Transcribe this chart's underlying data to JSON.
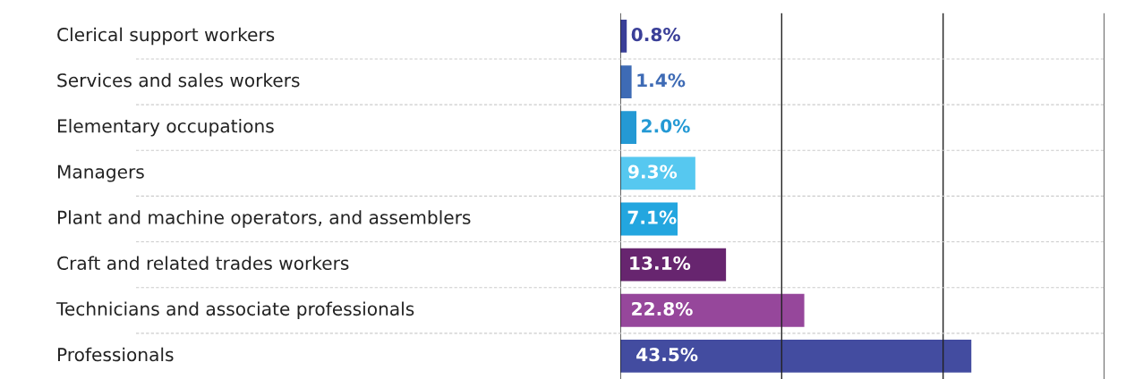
{
  "chart_data": {
    "type": "bar",
    "orientation": "horizontal",
    "categories": [
      "Clerical support workers",
      "Services and sales workers",
      "Elementary occupations",
      "Managers",
      "Plant and machine operators, and assemblers",
      "Craft and related trades workers",
      "Technicians and associate professionals",
      "Professionals"
    ],
    "values": [
      0.8,
      1.4,
      2.0,
      9.3,
      7.1,
      13.1,
      22.8,
      43.5
    ],
    "value_labels": [
      "0.8%",
      "1.4%",
      "2.0%",
      "9.3%",
      "7.1%",
      "13.1%",
      "22.8%",
      "43.5%"
    ],
    "colors": [
      "#3a3f98",
      "#3e6bb5",
      "#2499d4",
      "#56c8f0",
      "#23a6df",
      "#67256f",
      "#96479b",
      "#434ca0"
    ],
    "xlim": [
      0,
      60
    ],
    "xticks": [
      {
        "value": 0,
        "label": null
      },
      {
        "value": 20,
        "label": null
      },
      {
        "value": 40,
        "label": null
      },
      {
        "value": 60,
        "label": null
      }
    ],
    "grid": true
  }
}
